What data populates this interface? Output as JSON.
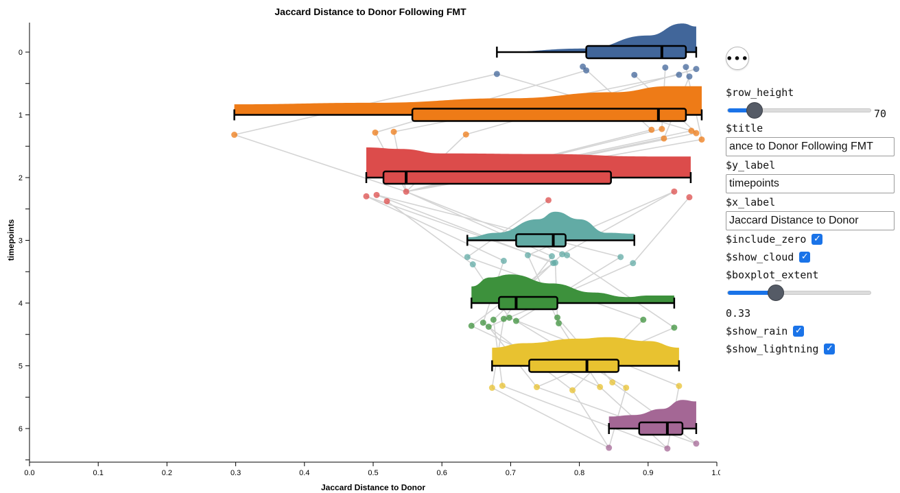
{
  "chart_data": {
    "type": "raincloud",
    "title": "Jaccard Distance to Donor Following FMT",
    "xlabel": "Jaccard Distance to Donor",
    "ylabel": "timepoints",
    "xlim": [
      0,
      1
    ],
    "x_ticks": [
      "0.0",
      "0.1",
      "0.2",
      "0.3",
      "0.4",
      "0.5",
      "0.6",
      "0.7",
      "0.8",
      "0.9",
      "1.0"
    ],
    "categories": [
      "0",
      "1",
      "2",
      "3",
      "4",
      "5",
      "6"
    ],
    "groups": [
      {
        "name": "0",
        "color": "#41669a",
        "box": {
          "whisker_low": 0.68,
          "q1": 0.81,
          "median": 0.92,
          "q3": 0.955,
          "whisker_high": 0.97
        },
        "cloud": [
          [
            0.68,
            0
          ],
          [
            0.81,
            0.12
          ],
          [
            0.9,
            0.55
          ],
          [
            0.95,
            0.95
          ],
          [
            0.97,
            0.85
          ]
        ],
        "points": [
          0.68,
          0.805,
          0.81,
          0.88,
          0.925,
          0.945,
          0.955,
          0.96,
          0.97
        ]
      },
      {
        "name": "1",
        "color": "#ee7b17",
        "box": {
          "whisker_low": 0.298,
          "q1": 0.557,
          "median": 0.915,
          "q3": 0.955,
          "whisker_high": 0.978
        },
        "cloud": [
          [
            0.298,
            0.35
          ],
          [
            0.5,
            0.4
          ],
          [
            0.7,
            0.55
          ],
          [
            0.85,
            0.75
          ],
          [
            0.93,
            0.95
          ],
          [
            0.978,
            0.95
          ]
        ],
        "points": [
          0.298,
          0.503,
          0.53,
          0.635,
          0.905,
          0.92,
          0.923,
          0.963,
          0.97,
          0.978
        ]
      },
      {
        "name": "2",
        "color": "#dc4c4b",
        "box": {
          "whisker_low": 0.49,
          "q1": 0.515,
          "median": 0.548,
          "q3": 0.846,
          "whisker_high": 0.962
        },
        "cloud": [
          [
            0.49,
            1.0
          ],
          [
            0.54,
            0.95
          ],
          [
            0.6,
            0.8
          ],
          [
            0.75,
            0.78
          ],
          [
            0.9,
            0.7
          ],
          [
            0.962,
            0.7
          ]
        ],
        "points": [
          0.49,
          0.505,
          0.52,
          0.548,
          0.755,
          0.938,
          0.96
        ]
      },
      {
        "name": "3",
        "color": "#62aba5",
        "box": {
          "whisker_low": 0.637,
          "q1": 0.708,
          "median": 0.762,
          "q3": 0.78,
          "whisker_high": 0.88
        },
        "cloud": [
          [
            0.637,
            0.1
          ],
          [
            0.68,
            0.25
          ],
          [
            0.74,
            0.7
          ],
          [
            0.765,
            0.95
          ],
          [
            0.8,
            0.7
          ],
          [
            0.84,
            0.25
          ],
          [
            0.88,
            0.22
          ]
        ],
        "points": [
          0.637,
          0.645,
          0.69,
          0.725,
          0.76,
          0.762,
          0.765,
          0.775,
          0.782,
          0.86,
          0.878
        ]
      },
      {
        "name": "4",
        "color": "#3d913c",
        "box": {
          "whisker_low": 0.643,
          "q1": 0.683,
          "median": 0.708,
          "q3": 0.768,
          "whisker_high": 0.938
        },
        "cloud": [
          [
            0.643,
            0.55
          ],
          [
            0.67,
            0.85
          ],
          [
            0.7,
            0.95
          ],
          [
            0.76,
            0.65
          ],
          [
            0.82,
            0.35
          ],
          [
            0.87,
            0.2
          ],
          [
            0.9,
            0.25
          ],
          [
            0.938,
            0.25
          ]
        ],
        "points": [
          0.643,
          0.66,
          0.668,
          0.675,
          0.69,
          0.698,
          0.708,
          0.768,
          0.77,
          0.893,
          0.938
        ]
      },
      {
        "name": "5",
        "color": "#e8c230",
        "box": {
          "whisker_low": 0.673,
          "q1": 0.727,
          "median": 0.811,
          "q3": 0.857,
          "whisker_high": 0.945
        },
        "cloud": [
          [
            0.673,
            0.6
          ],
          [
            0.72,
            0.75
          ],
          [
            0.8,
            0.9
          ],
          [
            0.84,
            0.95
          ],
          [
            0.9,
            0.82
          ],
          [
            0.945,
            0.6
          ]
        ],
        "points": [
          0.673,
          0.688,
          0.738,
          0.79,
          0.83,
          0.848,
          0.868,
          0.945
        ]
      },
      {
        "name": "6",
        "color": "#a46795",
        "box": {
          "whisker_low": 0.843,
          "q1": 0.887,
          "median": 0.928,
          "q3": 0.95,
          "whisker_high": 0.97
        },
        "cloud": [
          [
            0.843,
            0.4
          ],
          [
            0.88,
            0.45
          ],
          [
            0.92,
            0.65
          ],
          [
            0.95,
            0.95
          ],
          [
            0.97,
            0.9
          ]
        ],
        "points": [
          0.843,
          0.928,
          0.97
        ]
      }
    ],
    "paired_lines": "light gray lines connect each subject's point across consecutive timepoints",
    "grid": false
  },
  "controls": {
    "more_button_label": "•••",
    "row_height": {
      "label": "$row_height",
      "value": "70",
      "fraction": 0.19
    },
    "title": {
      "label": "$title",
      "value": "ance to Donor Following FMT"
    },
    "y_label": {
      "label": "$y_label",
      "value": "timepoints"
    },
    "x_label": {
      "label": "$x_label",
      "value": "Jaccard Distance to Donor"
    },
    "include_zero": {
      "label": "$include_zero",
      "checked": true
    },
    "show_cloud": {
      "label": "$show_cloud",
      "checked": true
    },
    "boxplot_extent": {
      "label": "$boxplot_extent",
      "value": "0.33",
      "fraction": 0.34
    },
    "show_rain": {
      "label": "$show_rain",
      "checked": true
    },
    "show_lightning": {
      "label": "$show_lightning",
      "checked": true
    }
  }
}
